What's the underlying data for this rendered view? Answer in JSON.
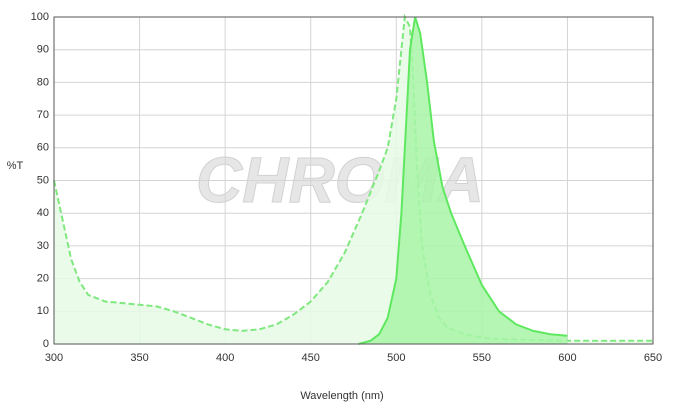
{
  "chart_data": {
    "type": "area",
    "xlabel": "Wavelength (nm)",
    "ylabel": "%T",
    "watermark": "CHROMA",
    "xlim": [
      300,
      650
    ],
    "xticks": [
      300,
      350,
      400,
      450,
      500,
      550,
      600,
      650
    ],
    "ylim": [
      0,
      100
    ],
    "yticks": [
      0,
      10,
      20,
      30,
      40,
      50,
      60,
      70,
      80,
      90,
      100
    ],
    "grid": true,
    "series": [
      {
        "color": "#7fe87f",
        "fill": "#e6fae6",
        "dashed": true,
        "x": [
          300,
          305,
          310,
          315,
          320,
          330,
          340,
          350,
          360,
          370,
          380,
          390,
          400,
          410,
          420,
          430,
          440,
          450,
          460,
          470,
          480,
          490,
          495,
          500,
          503,
          505,
          508,
          510,
          512,
          515,
          520,
          525,
          530,
          540,
          550,
          560,
          600,
          650
        ],
        "values": [
          50,
          38,
          26,
          19,
          15,
          13,
          12.5,
          12,
          11.5,
          10,
          8,
          6,
          4.5,
          4,
          4.5,
          6,
          9,
          13,
          19,
          28,
          40,
          53,
          60,
          75,
          90,
          100,
          97,
          80,
          55,
          30,
          15,
          8,
          5,
          3,
          2,
          1.5,
          1,
          1
        ]
      },
      {
        "color": "#5fe85f",
        "fill": "#a8f5a8",
        "dashed": false,
        "x": [
          478,
          485,
          490,
          495,
          500,
          503,
          506,
          508,
          511,
          514,
          518,
          522,
          527,
          532,
          540,
          550,
          560,
          570,
          580,
          590,
          600
        ],
        "values": [
          0,
          1,
          3,
          8,
          20,
          40,
          70,
          90,
          100,
          95,
          80,
          62,
          48,
          40,
          30,
          18,
          10,
          6,
          4,
          3,
          2.5
        ]
      }
    ]
  }
}
